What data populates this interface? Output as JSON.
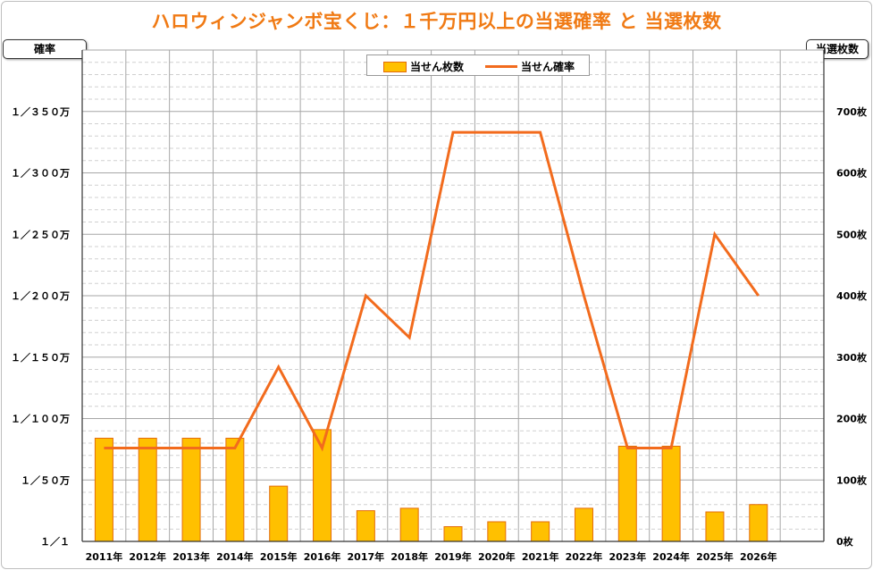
{
  "title": "ハロウィンジャンボ宝くじ：１千万円以上の当選確率 と 当選枚数",
  "left_axis_title": "確率",
  "right_axis_title": "当選枚数",
  "legend": {
    "bar": "当せん枚数",
    "line": "当せん確率"
  },
  "colors": {
    "bar_fill": "#ffc000",
    "bar_stroke": "#e36c0a",
    "line": "#f26b1d",
    "title": "#f07a14"
  },
  "chart_data": {
    "type": "bar",
    "categories": [
      "2011年",
      "2012年",
      "2013年",
      "2014年",
      "2015年",
      "2016年",
      "2017年",
      "2018年",
      "2019年",
      "2020年",
      "2021年",
      "2022年",
      "2023年",
      "2024年",
      "2025年",
      "2026年"
    ],
    "left_ticks": [
      "１／１",
      "１／５０万",
      "１／１００万",
      "１／１５０万",
      "１／２００万",
      "１／２５０万",
      "１／３００万",
      "１／３５０万"
    ],
    "right_ticks": [
      "0枚",
      "100枚",
      "200枚",
      "300枚",
      "400枚",
      "500枚",
      "600枚",
      "700枚"
    ],
    "y_left_lim": [
      0,
      400
    ],
    "y_right_lim": [
      0,
      800
    ],
    "grid": true,
    "legend_position": "top",
    "series": [
      {
        "name": "当せん枚数",
        "kind": "bar",
        "axis": "right",
        "values": [
          168,
          168,
          168,
          168,
          90,
          182,
          50,
          54,
          24,
          32,
          32,
          54,
          155,
          155,
          48,
          60
        ]
      },
      {
        "name": "当せん確率",
        "kind": "line",
        "axis": "left",
        "values": [
          76,
          76,
          76,
          76,
          142,
          76,
          200,
          166,
          333,
          333,
          333,
          200,
          76,
          76,
          250,
          200
        ]
      }
    ]
  }
}
